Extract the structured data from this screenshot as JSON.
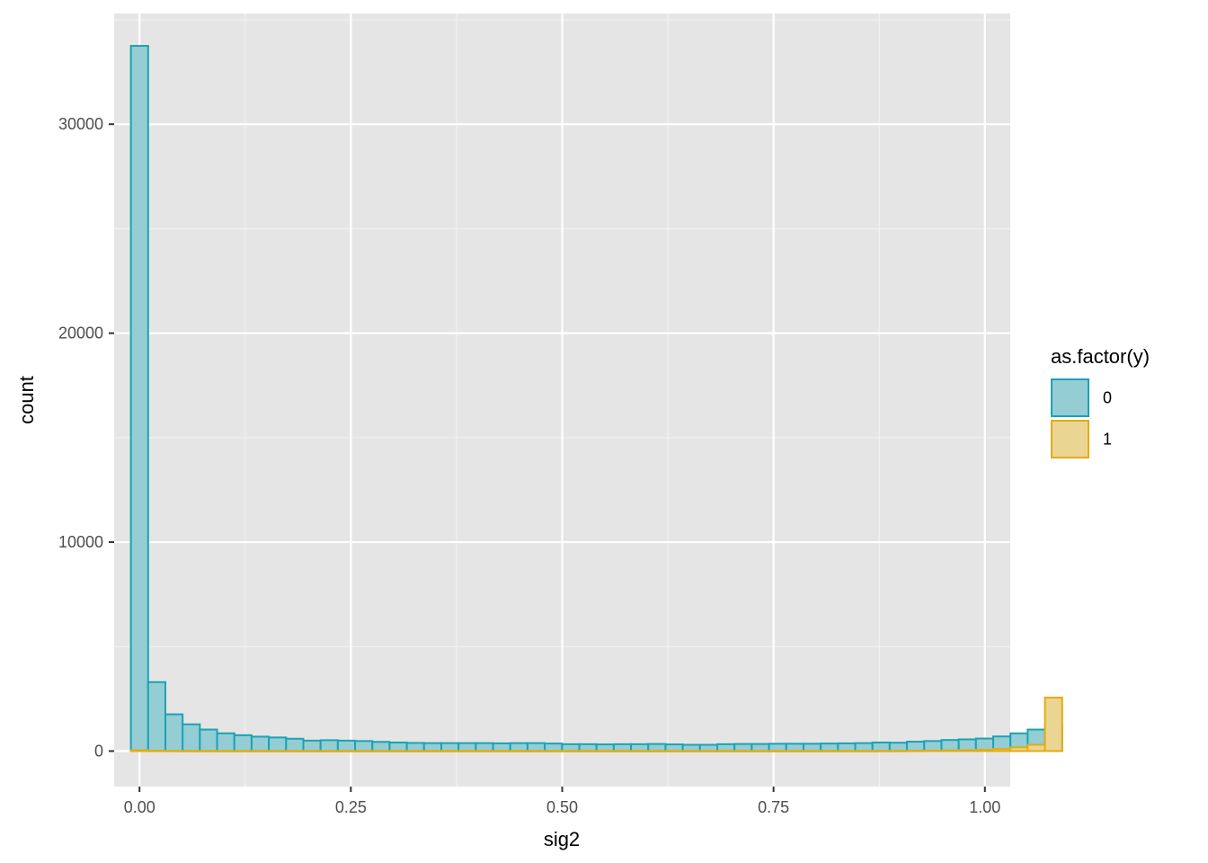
{
  "chart_data": {
    "type": "histogram",
    "xlabel": "sig2",
    "ylabel": "count",
    "xlim": [
      -0.03,
      1.03
    ],
    "ylim": [
      -1700,
      35300
    ],
    "x_ticks": [
      0.0,
      0.25,
      0.5,
      0.75,
      1.0
    ],
    "x_tick_labels": [
      "0.00",
      "0.25",
      "0.50",
      "0.75",
      "1.00"
    ],
    "y_ticks": [
      0,
      10000,
      20000,
      30000
    ],
    "y_tick_labels": [
      "0",
      "10000",
      "20000",
      "30000"
    ],
    "grid": true,
    "bin_width": 0.0204,
    "bin_start": -0.0102,
    "legend": {
      "title": "as.factor(y)",
      "position": "right"
    },
    "series": [
      {
        "name": "0",
        "fill": "#94cdd4",
        "stroke": "#1ba3b3",
        "values": [
          33750,
          3300,
          1760,
          1280,
          1030,
          850,
          760,
          690,
          650,
          590,
          500,
          520,
          500,
          480,
          440,
          410,
          390,
          380,
          380,
          380,
          380,
          370,
          380,
          380,
          360,
          330,
          330,
          320,
          330,
          330,
          340,
          320,
          300,
          300,
          330,
          340,
          340,
          350,
          350,
          350,
          360,
          370,
          380,
          410,
          400,
          450,
          480,
          530,
          560,
          600,
          700,
          850,
          1030,
          1290
        ]
      },
      {
        "name": "1",
        "fill": "#ebd593",
        "stroke": "#e3ac10",
        "values": [
          40,
          15,
          10,
          8,
          8,
          6,
          6,
          5,
          5,
          5,
          5,
          5,
          5,
          5,
          5,
          5,
          5,
          5,
          5,
          5,
          5,
          5,
          5,
          5,
          5,
          5,
          5,
          5,
          5,
          5,
          5,
          5,
          5,
          5,
          5,
          5,
          5,
          5,
          5,
          5,
          5,
          6,
          6,
          8,
          10,
          15,
          20,
          30,
          40,
          60,
          100,
          180,
          300,
          2560
        ]
      }
    ]
  }
}
